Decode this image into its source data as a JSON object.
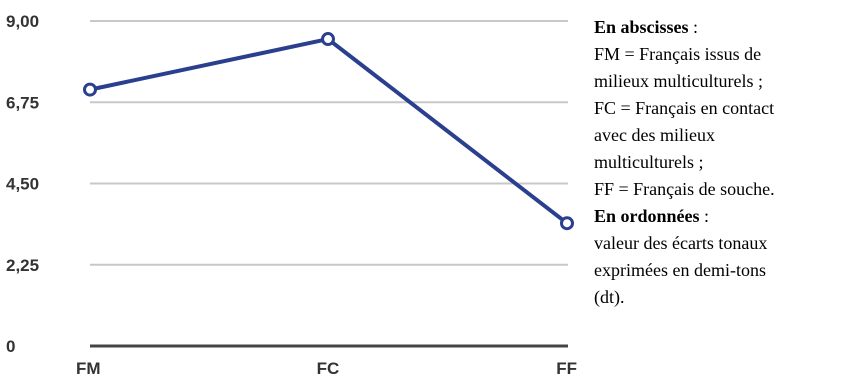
{
  "chart_data": {
    "type": "line",
    "categories": [
      "FM",
      "FC",
      "FF"
    ],
    "series": [
      {
        "values": [
          7.1,
          8.5,
          3.4
        ]
      }
    ],
    "y_ticks": [
      "0",
      "2,25",
      "4,50",
      "6,75",
      "9,00"
    ],
    "ylim": [
      0,
      9
    ],
    "grid": true,
    "colors": {
      "line": "#2b3f8f",
      "grid": "#c8c8c8",
      "axis": "#444444"
    }
  },
  "legend": {
    "abscissa_title": "En abscisses",
    "abscissa_suffix": " :",
    "abscissa_lines": [
      "FM = Français issus de",
      "milieux multiculturels ;",
      "FC = Français en contact",
      "avec des milieux",
      "multiculturels ;",
      "FF = Français de souche."
    ],
    "ordinate_title": "En ordonnées",
    "ordinate_suffix": " :",
    "ordinate_lines": [
      "valeur des écarts tonaux",
      "exprimées en demi-tons",
      "(dt)."
    ]
  }
}
